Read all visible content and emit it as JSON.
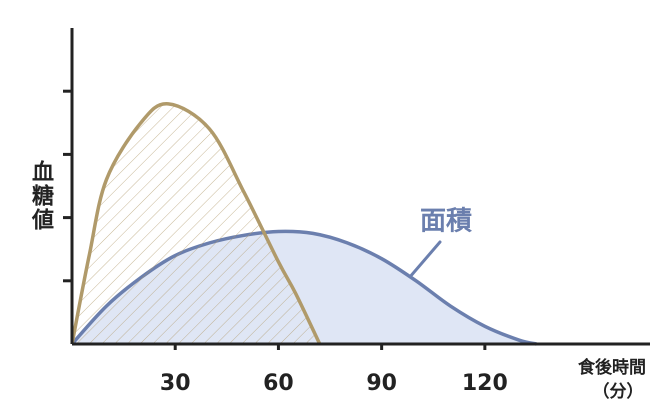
{
  "chart_data": {
    "type": "area",
    "y_label": "血糖値",
    "x_label": "食後時間",
    "x_unit": "（分）",
    "annotation": "面積",
    "xlim": [
      0,
      168
    ],
    "xticks": [
      30,
      60,
      90,
      120
    ],
    "ylim": [
      0,
      5
    ],
    "yticks": [
      1,
      2,
      3,
      4
    ],
    "series": [
      {
        "color": "#6b7fae",
        "fill": "#dfe6f5",
        "fill_style": "solid",
        "x": [
          0,
          10,
          20,
          30,
          40,
          50,
          60,
          70,
          80,
          90,
          100,
          110,
          120,
          130,
          135
        ],
        "values": [
          0,
          0.6,
          1.05,
          1.4,
          1.6,
          1.72,
          1.78,
          1.75,
          1.6,
          1.35,
          1.0,
          0.6,
          0.28,
          0.06,
          0
        ]
      },
      {
        "color": "#b09a6a",
        "fill": "#b09a6a",
        "fill_style": "hatch",
        "x": [
          0,
          5,
          10,
          20,
          28,
          40,
          50,
          60,
          65,
          72
        ],
        "values": [
          0,
          1.4,
          2.6,
          3.5,
          3.8,
          3.4,
          2.4,
          1.3,
          0.8,
          0
        ]
      }
    ]
  }
}
